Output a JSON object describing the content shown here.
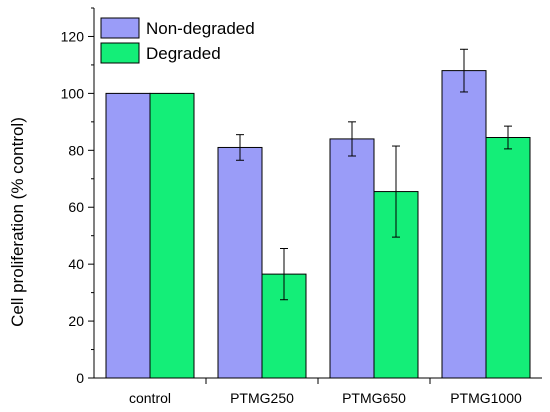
{
  "chart_data": {
    "type": "bar",
    "title": "",
    "xlabel": "",
    "ylabel": "Cell proliferation (% control)",
    "categories": [
      "control",
      "PTMG250",
      "PTMG650",
      "PTMG1000"
    ],
    "series": [
      {
        "name": "Non-degraded",
        "color": "#9a9cf8",
        "values": [
          100,
          81,
          84,
          108
        ],
        "errors": [
          null,
          4.5,
          6,
          7.5
        ]
      },
      {
        "name": "Degraded",
        "color": "#14ee78",
        "values": [
          100,
          36.5,
          65.5,
          84.5
        ],
        "errors": [
          null,
          9,
          16,
          4
        ]
      }
    ],
    "ylim": [
      0,
      130
    ],
    "yticks": [
      0,
      20,
      40,
      60,
      80,
      100,
      120
    ],
    "grid": false,
    "legend_position": "top-left"
  }
}
